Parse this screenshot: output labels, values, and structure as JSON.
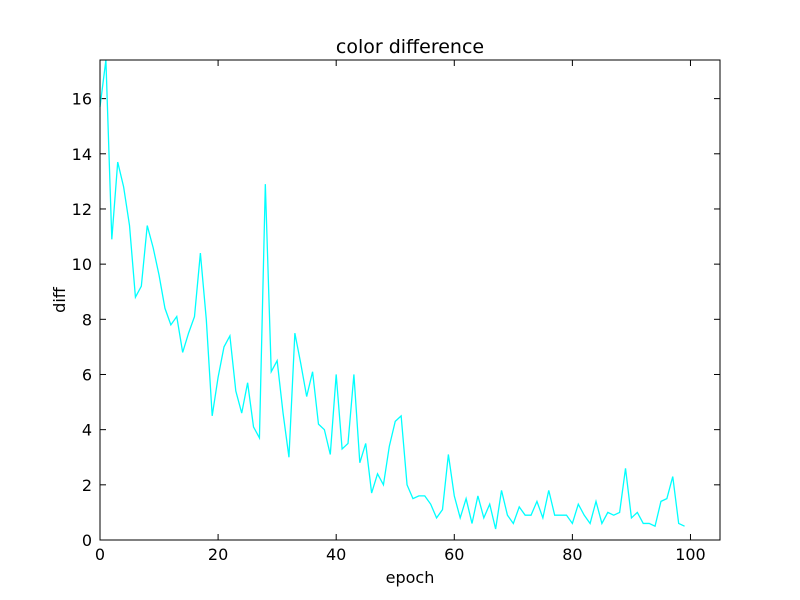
{
  "chart_data": {
    "type": "line",
    "title": "color difference",
    "xlabel": "epoch",
    "ylabel": "diff",
    "xlim": [
      0,
      105
    ],
    "ylim": [
      0,
      17.4
    ],
    "xticks": [
      0,
      20,
      40,
      60,
      80,
      100
    ],
    "yticks": [
      0,
      2,
      4,
      6,
      8,
      10,
      12,
      14,
      16
    ],
    "grid": false,
    "line_color": "#00ffff",
    "series": [
      {
        "x": [
          0,
          1,
          2,
          3,
          4,
          5,
          6,
          7,
          8,
          9,
          10,
          11,
          12,
          13,
          14,
          15,
          16,
          17,
          18,
          19,
          20,
          21,
          22,
          23,
          24,
          25,
          26,
          27,
          28,
          29,
          30,
          31,
          32,
          33,
          34,
          35,
          36,
          37,
          38,
          39,
          40,
          41,
          42,
          43,
          44,
          45,
          46,
          47,
          48,
          49,
          50,
          51,
          52,
          53,
          54,
          55,
          56,
          57,
          58,
          59,
          60,
          61,
          62,
          63,
          64,
          65,
          66,
          67,
          68,
          69,
          70,
          71,
          72,
          73,
          74,
          75,
          76,
          77,
          78,
          79,
          80,
          81,
          82,
          83,
          84,
          85,
          86,
          87,
          88,
          89,
          90,
          91,
          92,
          93,
          94,
          95,
          96,
          97,
          98,
          99
        ],
        "y": [
          15.7,
          17.4,
          10.9,
          13.7,
          12.8,
          11.4,
          8.8,
          9.2,
          11.4,
          10.6,
          9.6,
          8.4,
          7.8,
          8.1,
          6.8,
          7.5,
          8.1,
          10.4,
          8.0,
          4.5,
          5.9,
          7.0,
          7.4,
          5.4,
          4.6,
          5.7,
          4.1,
          3.7,
          12.9,
          6.1,
          6.5,
          4.6,
          3.0,
          7.5,
          6.4,
          5.2,
          6.1,
          4.2,
          4.0,
          3.1,
          6.0,
          3.3,
          3.5,
          6.0,
          2.8,
          3.5,
          1.7,
          2.4,
          2.0,
          3.4,
          4.3,
          4.5,
          2.0,
          1.5,
          1.6,
          1.6,
          1.3,
          0.8,
          1.1,
          3.1,
          1.6,
          0.8,
          1.5,
          0.6,
          1.6,
          0.8,
          1.3,
          0.4,
          1.8,
          0.9,
          0.6,
          1.2,
          0.9,
          0.9,
          1.4,
          0.8,
          1.8,
          0.9,
          0.9,
          0.9,
          0.6,
          1.3,
          0.9,
          0.6,
          1.4,
          0.6,
          1.0,
          0.9,
          1.0,
          2.6,
          0.8,
          1.0,
          0.6,
          0.6,
          0.5,
          1.4,
          1.5,
          2.3,
          0.6,
          0.5
        ]
      }
    ]
  }
}
